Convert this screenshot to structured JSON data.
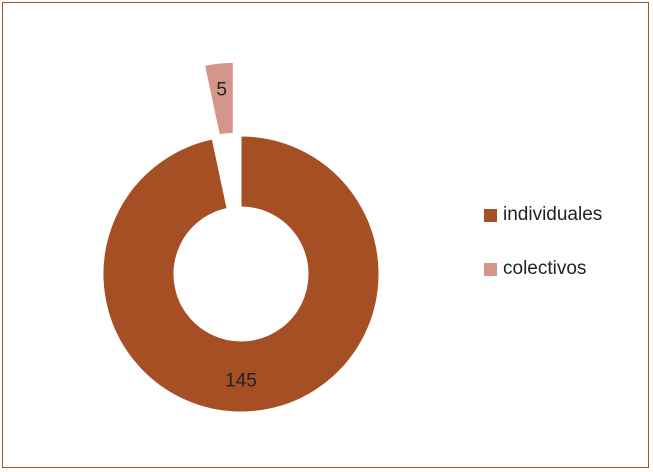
{
  "chart_data": {
    "type": "pie",
    "title": "",
    "categories": [
      "individuales",
      "colectivos"
    ],
    "values": [
      145,
      5
    ],
    "data_labels": [
      "145",
      "5"
    ],
    "colors": [
      "#a64f25",
      "#d5958b"
    ],
    "donut": true,
    "exploded": [
      "colectivos"
    ],
    "legend_position": "right"
  }
}
